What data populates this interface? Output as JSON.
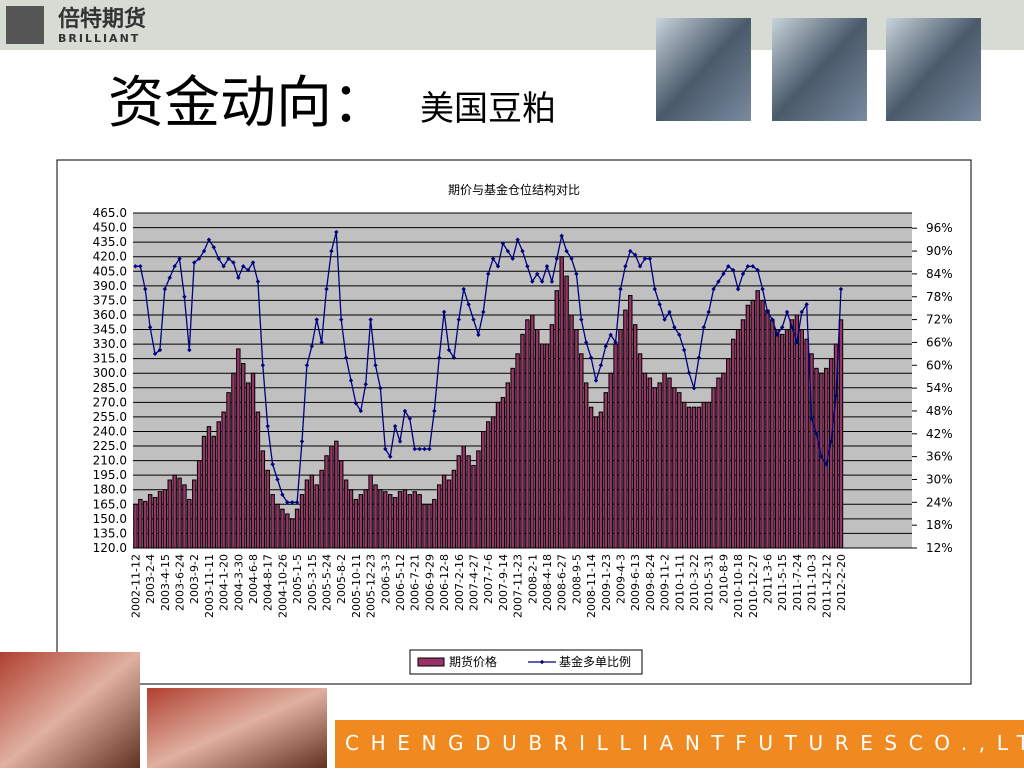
{
  "logo": {
    "name": "倍特期货",
    "sub": "BRILLIANT"
  },
  "slide_title": {
    "main": "资金动向：",
    "sub": "美国豆粕"
  },
  "footer": "CHENGDUBRILLIANTFUTURESCO.,LTD.",
  "chart_data": {
    "type": "bar",
    "title": "期价与基金仓位结构对比",
    "categories": [
      "2002-11-12",
      null,
      null,
      "2003-2-4",
      null,
      null,
      "2003-4-15",
      null,
      null,
      "2003-6-24",
      null,
      null,
      "2003-9-2",
      null,
      null,
      "2003-11-11",
      null,
      null,
      "2004-1-20",
      null,
      null,
      "2004-3-30",
      null,
      null,
      "2004-6-8",
      null,
      null,
      "2004-8-17",
      null,
      null,
      "2004-10-26",
      null,
      null,
      "2005-1-5",
      null,
      null,
      "2005-3-15",
      null,
      null,
      "2005-5-24",
      null,
      null,
      "2005-8-2",
      null,
      null,
      "2005-10-11",
      null,
      null,
      "2005-12-23",
      null,
      null,
      "2006-3-3",
      null,
      null,
      "2006-5-12",
      null,
      null,
      "2006-7-21",
      null,
      null,
      "2006-9-29",
      null,
      null,
      "2006-12-8",
      null,
      null,
      "2007-2-16",
      null,
      null,
      "2007-4-27",
      null,
      null,
      "2007-7-6",
      null,
      null,
      "2007-9-14",
      null,
      null,
      "2007-11-23",
      null,
      null,
      "2008-2-1",
      null,
      null,
      "2008-4-18",
      null,
      null,
      "2008-6-27",
      null,
      null,
      "2008-9-5",
      null,
      null,
      "2008-11-14",
      null,
      null,
      "2009-1-23",
      null,
      null,
      "2009-4-3",
      null,
      null,
      "2009-6-13",
      null,
      null,
      "2009-8-24",
      null,
      null,
      "2009-11-2",
      null,
      null,
      "2010-1-11",
      null,
      null,
      "2010-3-22",
      null,
      null,
      "2010-5-31",
      null,
      null,
      "2010-8-9",
      null,
      null,
      "2010-10-18",
      null,
      null,
      "2010-12-27",
      null,
      null,
      "2011-3-6",
      null,
      null,
      "2011-5-15",
      null,
      null,
      "2011-7-24",
      null,
      null,
      "2011-10-3",
      null,
      null,
      "2011-12-12",
      null,
      null,
      "2012-2-20",
      null,
      null,
      null,
      null,
      null,
      null,
      null,
      null,
      null,
      null,
      null,
      null,
      null,
      null
    ],
    "series": [
      {
        "name": "期货价格",
        "color": "#993366",
        "values": [
          165,
          170,
          168,
          175,
          172,
          178,
          180,
          190,
          195,
          192,
          185,
          170,
          190,
          210,
          235,
          245,
          235,
          250,
          260,
          280,
          300,
          325,
          310,
          290,
          300,
          260,
          220,
          200,
          175,
          165,
          160,
          155,
          150,
          160,
          175,
          190,
          195,
          185,
          200,
          215,
          225,
          230,
          210,
          190,
          180,
          170,
          175,
          180,
          195,
          185,
          180,
          178,
          175,
          172,
          178,
          180,
          175,
          178,
          175,
          165,
          165,
          170,
          185,
          195,
          190,
          200,
          215,
          225,
          215,
          205,
          220,
          240,
          250,
          255,
          270,
          275,
          290,
          305,
          320,
          340,
          355,
          360,
          345,
          330,
          330,
          350,
          385,
          420,
          400,
          360,
          345,
          320,
          290,
          265,
          255,
          260,
          280,
          300,
          330,
          345,
          365,
          380,
          350,
          320,
          300,
          295,
          285,
          290,
          300,
          295,
          285,
          280,
          270,
          265,
          265,
          265,
          270,
          270,
          285,
          295,
          300,
          315,
          335,
          345,
          355,
          370,
          375,
          385,
          375,
          365,
          355,
          345,
          340,
          345,
          355,
          360,
          345,
          335,
          320,
          305,
          300,
          305,
          315,
          330,
          355,
          null,
          null,
          null,
          null,
          null,
          null,
          null,
          null,
          null,
          null,
          null,
          null,
          null,
          null
        ]
      },
      {
        "name": "基金多单比例",
        "color": "#000080",
        "type": "line",
        "axis": "y2",
        "values": [
          86,
          86,
          80,
          70,
          63,
          64,
          80,
          83,
          86,
          88,
          78,
          64,
          87,
          88,
          90,
          93,
          91,
          88,
          86,
          88,
          87,
          83,
          86,
          85,
          87,
          82,
          60,
          44,
          34,
          30,
          26,
          24,
          24,
          24,
          40,
          60,
          65,
          72,
          66,
          80,
          90,
          95,
          72,
          62,
          56,
          50,
          48,
          55,
          72,
          60,
          54,
          38,
          36,
          44,
          40,
          48,
          46,
          38,
          38,
          38,
          38,
          48,
          62,
          74,
          64,
          62,
          72,
          80,
          76,
          72,
          68,
          74,
          84,
          88,
          86,
          92,
          90,
          88,
          93,
          90,
          86,
          82,
          84,
          82,
          86,
          82,
          88,
          94,
          90,
          88,
          84,
          72,
          66,
          62,
          56,
          60,
          65,
          68,
          66,
          80,
          86,
          90,
          89,
          86,
          88,
          88,
          80,
          76,
          72,
          74,
          70,
          68,
          64,
          58,
          54,
          62,
          70,
          74,
          80,
          82,
          84,
          86,
          85,
          80,
          84,
          86,
          86,
          85,
          80,
          74,
          72,
          68,
          70,
          74,
          70,
          66,
          74,
          76,
          46,
          42,
          36,
          34,
          40,
          52,
          80,
          null,
          null,
          null,
          null,
          null,
          null,
          null,
          null,
          null,
          null,
          null,
          null,
          null,
          null
        ]
      }
    ],
    "ylim": [
      120,
      465
    ],
    "yticks": [
      {
        "value": 120,
        "label": "120.0"
      },
      {
        "value": 135,
        "label": "135.0"
      },
      {
        "value": 150,
        "label": "150.0"
      },
      {
        "value": 165,
        "label": "165.0"
      },
      {
        "value": 180,
        "label": "180.0"
      },
      {
        "value": 195,
        "label": "195.0"
      },
      {
        "value": 210,
        "label": "210.0"
      },
      {
        "value": 225,
        "label": "225.0"
      },
      {
        "value": 240,
        "label": "240.0"
      },
      {
        "value": 255,
        "label": "255.0"
      },
      {
        "value": 270,
        "label": "270.0"
      },
      {
        "value": 285,
        "label": "285.0"
      },
      {
        "value": 300,
        "label": "300.0"
      },
      {
        "value": 315,
        "label": "315.0"
      },
      {
        "value": 330,
        "label": "330.0"
      },
      {
        "value": 345,
        "label": "345.0"
      },
      {
        "value": 360,
        "label": "360.0"
      },
      {
        "value": 375,
        "label": "375.0"
      },
      {
        "value": 390,
        "label": "390.0"
      },
      {
        "value": 405,
        "label": "405.0"
      },
      {
        "value": 420,
        "label": "420.0"
      },
      {
        "value": 435,
        "label": "435.0"
      },
      {
        "value": 450,
        "label": "450.0"
      },
      {
        "value": 465,
        "label": "465.0"
      }
    ],
    "y2lim": [
      12,
      100
    ],
    "y2ticks": [
      {
        "value": 12,
        "label": "12%"
      },
      {
        "value": 18,
        "label": "18%"
      },
      {
        "value": 24,
        "label": "24%"
      },
      {
        "value": 30,
        "label": "30%"
      },
      {
        "value": 36,
        "label": "36%"
      },
      {
        "value": 42,
        "label": "42%"
      },
      {
        "value": 48,
        "label": "48%"
      },
      {
        "value": 54,
        "label": "54%"
      },
      {
        "value": 60,
        "label": "60%"
      },
      {
        "value": 66,
        "label": "66%"
      },
      {
        "value": 72,
        "label": "72%"
      },
      {
        "value": 78,
        "label": "78%"
      },
      {
        "value": 84,
        "label": "84%"
      },
      {
        "value": 90,
        "label": "90%"
      },
      {
        "value": 96,
        "label": "96%"
      }
    ],
    "grid": true,
    "legend": "bottom"
  }
}
